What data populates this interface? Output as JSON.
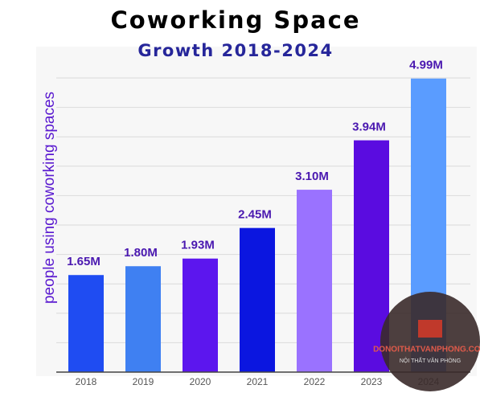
{
  "chart_data": {
    "type": "bar",
    "title": "Coworking Space",
    "subtitle": "Growth 2018-2024",
    "y_label": "people using coworking spaces",
    "categories": [
      "2018",
      "2019",
      "2020",
      "2021",
      "2022",
      "2023",
      "2024"
    ],
    "values": [
      1.65,
      1.8,
      1.93,
      2.45,
      3.1,
      3.94,
      4.99
    ],
    "value_labels": [
      "1.65M",
      "1.80M",
      "1.93M",
      "2.45M",
      "3.10M",
      "3.94M",
      "4.99M"
    ],
    "colors": [
      "#1f4cf2",
      "#3f80f2",
      "#5c16ee",
      "#0b16e0",
      "#9a72ff",
      "#5a0ce0",
      "#5a9cff"
    ],
    "ylim": [
      0,
      5
    ],
    "yticks": [
      0,
      0.5,
      1,
      1.5,
      2,
      2.5,
      3,
      3.5,
      4,
      4.5,
      5
    ],
    "grid": true,
    "watermark": {
      "title": "DONOITHATVANPHONG.COM",
      "subtitle": "NỘI THẤT VĂN PHÒNG"
    }
  }
}
